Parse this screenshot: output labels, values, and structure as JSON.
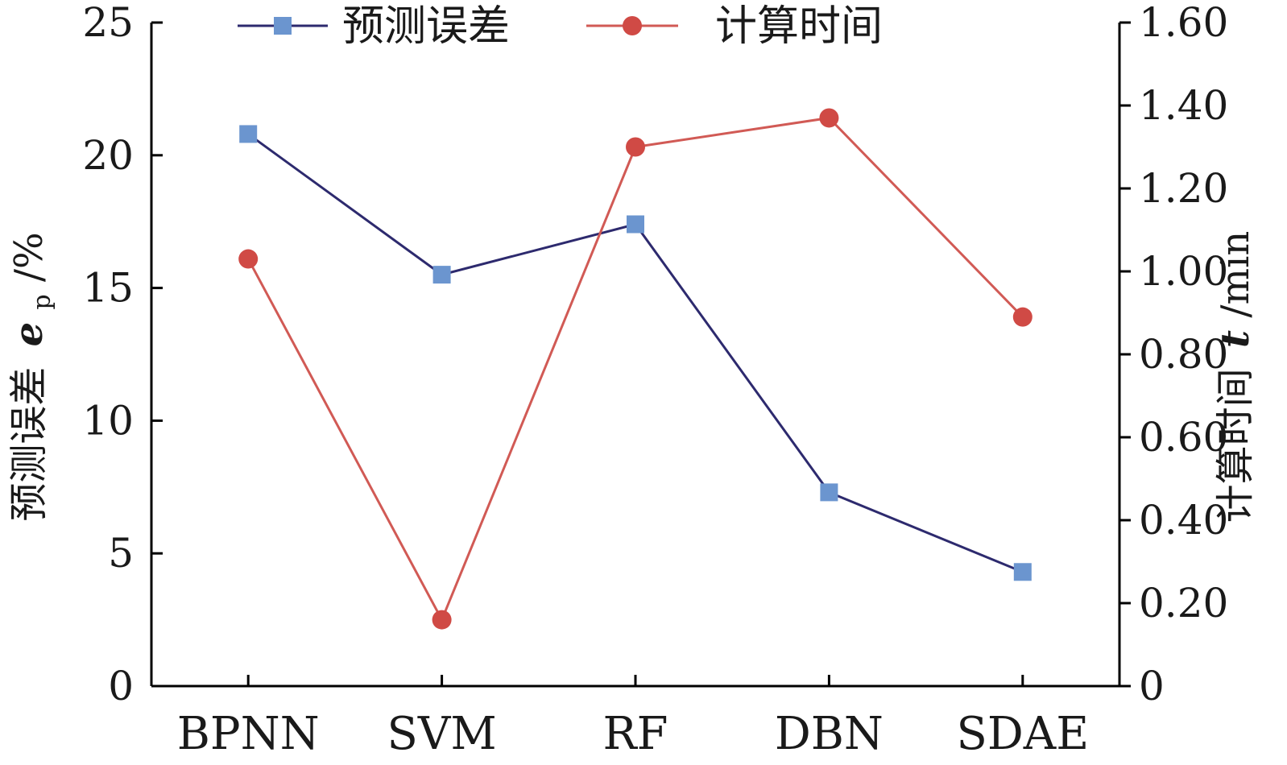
{
  "chart_data": {
    "type": "line",
    "categories": [
      "BPNN",
      "SVM",
      "RF",
      "DBN",
      "SDAE"
    ],
    "series": [
      {
        "name": "预测误差",
        "axis": "left",
        "color": "#2d2a6e",
        "marker": "square",
        "marker_color": "#6b95cf",
        "values": [
          20.8,
          15.5,
          17.4,
          7.3,
          4.3
        ]
      },
      {
        "name": "计算时间",
        "axis": "right",
        "color": "#d15a55",
        "marker": "circle",
        "marker_color": "#d04a45",
        "values": [
          1.03,
          0.16,
          1.3,
          1.37,
          0.89
        ]
      }
    ],
    "y_left": {
      "label_prefix": "预测误差",
      "label_var": "e",
      "label_sub": "p",
      "label_unit": "/%",
      "ylim": [
        0,
        25
      ],
      "ticks": [
        "0",
        "5",
        "10",
        "15",
        "20",
        "25"
      ]
    },
    "y_right": {
      "label_prefix": "计算时间",
      "label_var": "t",
      "label_unit": "/min",
      "ylim": [
        0,
        1.6
      ],
      "ticks": [
        "0",
        "0.20",
        "0.40",
        "0.60",
        "0.80",
        "1.00",
        "1.20",
        "1.40",
        "1.60"
      ]
    },
    "legend_placement": "top",
    "grid": false
  }
}
